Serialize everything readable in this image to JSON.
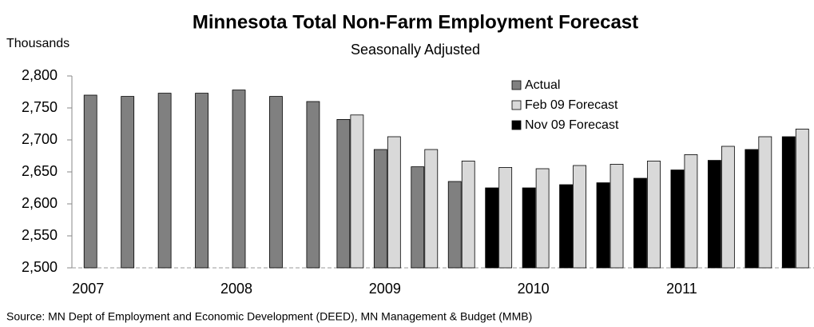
{
  "chart_data": {
    "type": "bar",
    "title": "Minnesota Total Non-Farm Employment Forecast",
    "subtitle": "Seasonally Adjusted",
    "y_axis_label": "Thousands",
    "source": "Source: MN Dept of Employment and Economic Development (DEED), MN Management & Budget (MMB)",
    "categories": [
      "2007",
      null,
      null,
      null,
      "2008",
      null,
      null,
      null,
      "2009",
      null,
      null,
      null,
      "2010",
      null,
      null,
      null,
      "2011",
      null,
      null,
      null
    ],
    "series": [
      {
        "name": "Actual",
        "color": "#808080",
        "values": [
          2770,
          2768,
          2773,
          2773,
          2778,
          2768,
          2760,
          2732,
          2685,
          2658,
          2635,
          null,
          null,
          null,
          null,
          null,
          null,
          null,
          null,
          null
        ]
      },
      {
        "name": "Feb 09 Forecast",
        "color": "#d9d9d9",
        "values": [
          null,
          null,
          null,
          null,
          null,
          null,
          null,
          2739,
          2705,
          2685,
          2667,
          2657,
          2655,
          2660,
          2662,
          2667,
          2677,
          2690,
          2705,
          2717
        ]
      },
      {
        "name": "Nov 09 Forecast",
        "color": "#000000",
        "values": [
          null,
          null,
          null,
          null,
          null,
          null,
          null,
          null,
          null,
          null,
          null,
          2625,
          2625,
          2630,
          2633,
          2640,
          2653,
          2668,
          2685,
          2705
        ]
      }
    ],
    "ylim": [
      2500,
      2800
    ],
    "yticks": [
      {
        "value": 2500,
        "label": "2,500"
      },
      {
        "value": 2550,
        "label": "2,550"
      },
      {
        "value": 2600,
        "label": "2,600"
      },
      {
        "value": 2650,
        "label": "2,650"
      },
      {
        "value": 2700,
        "label": "2,700"
      },
      {
        "value": 2750,
        "label": "2,750"
      },
      {
        "value": 2800,
        "label": "2,800"
      }
    ]
  }
}
